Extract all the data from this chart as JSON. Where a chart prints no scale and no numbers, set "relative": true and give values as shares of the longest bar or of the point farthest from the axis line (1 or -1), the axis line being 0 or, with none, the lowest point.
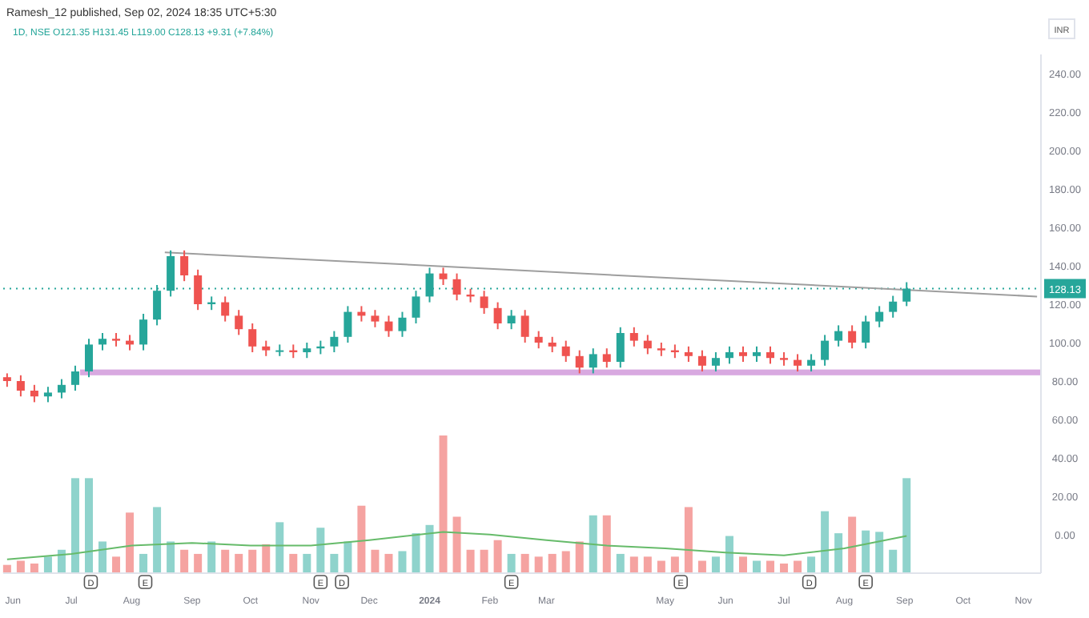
{
  "chart_data": [
    {
      "type": "candlestick",
      "title": "Ramesh_12 published, Sep 02, 2024 18:35 UTC+5:30",
      "subtitle": "1D, NSE  O121.35 H131.45 L119.00 C128.13 +9.31 (+7.84%)",
      "ylabel": "INR",
      "x": [
        "2023-05-29",
        "2023-06-05",
        "2023-06-12",
        "2023-06-19",
        "2023-06-26",
        "2023-07-03",
        "2023-07-10",
        "2023-07-17",
        "2023-07-24",
        "2023-07-31",
        "2023-08-07",
        "2023-08-14",
        "2023-08-21",
        "2023-08-28",
        "2023-09-04",
        "2023-09-11",
        "2023-09-18",
        "2023-09-25",
        "2023-10-02",
        "2023-10-09",
        "2023-10-16",
        "2023-10-23",
        "2023-10-30",
        "2023-11-06",
        "2023-11-13",
        "2023-11-20",
        "2023-11-27",
        "2023-12-04",
        "2023-12-11",
        "2023-12-18",
        "2023-12-25",
        "2024-01-01",
        "2024-01-08",
        "2024-01-15",
        "2024-01-22",
        "2024-01-29",
        "2024-02-05",
        "2024-02-12",
        "2024-02-19",
        "2024-02-26",
        "2024-03-04",
        "2024-03-11",
        "2024-03-18",
        "2024-03-25",
        "2024-04-01",
        "2024-04-08",
        "2024-04-15",
        "2024-04-22",
        "2024-04-29",
        "2024-05-06",
        "2024-05-13",
        "2024-05-20",
        "2024-05-27",
        "2024-06-03",
        "2024-06-10",
        "2024-06-17",
        "2024-06-24",
        "2024-07-01",
        "2024-07-08",
        "2024-07-15",
        "2024-07-22",
        "2024-07-29",
        "2024-08-05",
        "2024-08-12",
        "2024-08-19",
        "2024-08-26",
        "2024-09-02"
      ],
      "ohlc": [
        [
          82,
          84,
          77,
          80
        ],
        [
          80,
          83,
          72,
          75
        ],
        [
          75,
          78,
          69,
          72
        ],
        [
          72,
          77,
          69,
          74
        ],
        [
          74,
          81,
          71,
          78
        ],
        [
          78,
          88,
          75,
          85
        ],
        [
          85,
          102,
          82,
          99
        ],
        [
          99,
          105,
          96,
          102
        ],
        [
          102,
          105,
          98,
          101
        ],
        [
          101,
          104,
          96,
          99
        ],
        [
          99,
          115,
          96,
          112
        ],
        [
          112,
          130,
          109,
          127
        ],
        [
          127,
          148,
          124,
          145
        ],
        [
          145,
          148,
          132,
          135
        ],
        [
          135,
          138,
          117,
          120
        ],
        [
          120,
          124,
          117,
          121
        ],
        [
          121,
          124,
          111,
          114
        ],
        [
          114,
          117,
          104,
          107
        ],
        [
          107,
          110,
          95,
          98
        ],
        [
          98,
          101,
          93,
          96
        ],
        [
          96,
          99,
          93,
          96
        ],
        [
          96,
          99,
          92,
          95
        ],
        [
          95,
          100,
          92,
          97
        ],
        [
          97,
          101,
          94,
          98
        ],
        [
          98,
          106,
          95,
          103
        ],
        [
          103,
          119,
          100,
          116
        ],
        [
          116,
          119,
          111,
          114
        ],
        [
          114,
          117,
          108,
          111
        ],
        [
          111,
          114,
          103,
          106
        ],
        [
          106,
          116,
          103,
          113
        ],
        [
          113,
          127,
          110,
          124
        ],
        [
          124,
          139,
          121,
          136
        ],
        [
          136,
          139,
          130,
          133
        ],
        [
          133,
          136,
          122,
          125
        ],
        [
          125,
          128,
          121,
          124
        ],
        [
          124,
          127,
          115,
          118
        ],
        [
          118,
          121,
          107,
          110
        ],
        [
          110,
          117,
          107,
          114
        ],
        [
          114,
          117,
          100,
          103
        ],
        [
          103,
          106,
          97,
          100
        ],
        [
          100,
          103,
          95,
          98
        ],
        [
          98,
          101,
          90,
          93
        ],
        [
          93,
          96,
          84,
          87
        ],
        [
          87,
          97,
          84,
          94
        ],
        [
          94,
          97,
          87,
          90
        ],
        [
          90,
          108,
          87,
          105
        ],
        [
          105,
          108,
          98,
          101
        ],
        [
          101,
          104,
          94,
          97
        ],
        [
          97,
          100,
          93,
          96
        ],
        [
          96,
          99,
          92,
          95
        ],
        [
          95,
          98,
          90,
          93
        ],
        [
          93,
          96,
          85,
          88
        ],
        [
          88,
          95,
          85,
          92
        ],
        [
          92,
          98,
          89,
          95
        ],
        [
          95,
          98,
          90,
          93
        ],
        [
          93,
          98,
          90,
          95
        ],
        [
          95,
          98,
          89,
          92
        ],
        [
          92,
          95,
          88,
          91
        ],
        [
          91,
          94,
          85,
          88
        ],
        [
          88,
          94,
          85,
          91
        ],
        [
          91,
          104,
          88,
          101
        ],
        [
          101,
          109,
          98,
          106
        ],
        [
          106,
          109,
          97,
          100
        ],
        [
          100,
          114,
          97,
          111
        ],
        [
          111,
          119,
          108,
          116
        ],
        [
          116,
          124.35,
          113,
          121.35
        ],
        [
          121.35,
          131.45,
          119,
          128.13
        ]
      ],
      "colors": [
        "#ef5350",
        "#ef5350",
        "#ef5350",
        "#26a69a",
        "#26a69a",
        "#26a69a",
        "#26a69a",
        "#26a69a",
        "#ef5350",
        "#ef5350",
        "#26a69a",
        "#26a69a",
        "#26a69a",
        "#ef5350",
        "#ef5350",
        "#26a69a",
        "#ef5350",
        "#ef5350",
        "#ef5350",
        "#ef5350",
        "#26a69a",
        "#ef5350",
        "#26a69a",
        "#26a69a",
        "#26a69a",
        "#26a69a",
        "#ef5350",
        "#ef5350",
        "#ef5350",
        "#26a69a",
        "#26a69a",
        "#26a69a",
        "#ef5350",
        "#ef5350",
        "#ef5350",
        "#ef5350",
        "#ef5350",
        "#26a69a",
        "#ef5350",
        "#ef5350",
        "#ef5350",
        "#ef5350",
        "#ef5350",
        "#26a69a",
        "#ef5350",
        "#26a69a",
        "#ef5350",
        "#ef5350",
        "#ef5350",
        "#ef5350",
        "#ef5350",
        "#ef5350",
        "#26a69a",
        "#26a69a",
        "#ef5350",
        "#26a69a",
        "#ef5350",
        "#ef5350",
        "#ef5350",
        "#26a69a",
        "#26a69a",
        "#26a69a",
        "#ef5350",
        "#26a69a",
        "#26a69a",
        "#26a69a",
        "#26a69a"
      ],
      "series": [
        {
          "type": "line",
          "x": [
            "2023-08-18",
            "2024-11-08"
          ],
          "values": [
            147,
            124
          ],
          "color": "#9e9e9e"
        }
      ],
      "xlim": [
        "2023-05-27",
        "2024-11-10"
      ],
      "ylim": [
        -20,
        250
      ],
      "yticks": [
        {
          "value": 0,
          "label": "0.00"
        },
        {
          "value": 20,
          "label": "20.00"
        },
        {
          "value": 40,
          "label": "40.00"
        },
        {
          "value": 60,
          "label": "60.00"
        },
        {
          "value": 80,
          "label": "80.00"
        },
        {
          "value": 100,
          "label": "100.00"
        },
        {
          "value": 120,
          "label": "120.00"
        },
        {
          "value": 140,
          "label": "140.00"
        },
        {
          "value": 160,
          "label": "160.00"
        },
        {
          "value": 180,
          "label": "180.00"
        },
        {
          "value": 200,
          "label": "200.00"
        },
        {
          "value": 220,
          "label": "220.00"
        },
        {
          "value": 240,
          "label": "240.00"
        }
      ],
      "tick_labels": "y",
      "ref_lines": [
        {
          "axis": "y",
          "value": 128.13,
          "label": "128.13",
          "color": "#26a69a",
          "line_style": "dotted"
        }
      ],
      "bands": [
        {
          "axis": "y",
          "from": 83,
          "to": 86,
          "color": "#ce93d8"
        }
      ]
    },
    {
      "type": "bar",
      "relative": true,
      "x": [
        "2023-05-29",
        "2023-06-05",
        "2023-06-12",
        "2023-06-19",
        "2023-06-26",
        "2023-07-03",
        "2023-07-10",
        "2023-07-17",
        "2023-07-24",
        "2023-07-31",
        "2023-08-07",
        "2023-08-14",
        "2023-08-21",
        "2023-08-28",
        "2023-09-04",
        "2023-09-11",
        "2023-09-18",
        "2023-09-25",
        "2023-10-02",
        "2023-10-09",
        "2023-10-16",
        "2023-10-23",
        "2023-10-30",
        "2023-11-06",
        "2023-11-13",
        "2023-11-20",
        "2023-11-27",
        "2023-12-04",
        "2023-12-11",
        "2023-12-18",
        "2023-12-25",
        "2024-01-01",
        "2024-01-08",
        "2024-01-15",
        "2024-01-22",
        "2024-01-29",
        "2024-02-05",
        "2024-02-12",
        "2024-02-19",
        "2024-02-26",
        "2024-03-04",
        "2024-03-11",
        "2024-03-18",
        "2024-03-25",
        "2024-04-01",
        "2024-04-08",
        "2024-04-15",
        "2024-04-22",
        "2024-04-29",
        "2024-05-06",
        "2024-05-13",
        "2024-05-20",
        "2024-05-27",
        "2024-06-03",
        "2024-06-10",
        "2024-06-17",
        "2024-06-24",
        "2024-07-01",
        "2024-07-08",
        "2024-07-15",
        "2024-07-22",
        "2024-07-29",
        "2024-08-05",
        "2024-08-12",
        "2024-08-19",
        "2024-08-26",
        "2024-09-02"
      ],
      "series": [
        {
          "type": "bar",
          "values": [
            0.06,
            0.09,
            0.07,
            0.12,
            0.17,
            0.69,
            0.69,
            0.23,
            0.12,
            0.44,
            0.14,
            0.48,
            0.23,
            0.17,
            0.14,
            0.23,
            0.17,
            0.14,
            0.17,
            0.21,
            0.37,
            0.14,
            0.14,
            0.33,
            0.14,
            0.23,
            0.49,
            0.17,
            0.14,
            0.16,
            0.29,
            0.35,
            1,
            0.41,
            0.17,
            0.17,
            0.24,
            0.14,
            0.14,
            0.12,
            0.14,
            0.16,
            0.23,
            0.42,
            0.42,
            0.14,
            0.12,
            0.12,
            0.09,
            0.12,
            0.48,
            0.09,
            0.12,
            0.27,
            0.12,
            0.09,
            0.09,
            0.07,
            0.09,
            0.12,
            0.45,
            0.29,
            0.41,
            0.31,
            0.3,
            0.17,
            0.69
          ],
          "colors": [
            "#f5a3a1",
            "#f5a3a1",
            "#f5a3a1",
            "#8fd3cc",
            "#8fd3cc",
            "#8fd3cc",
            "#8fd3cc",
            "#8fd3cc",
            "#f5a3a1",
            "#f5a3a1",
            "#8fd3cc",
            "#8fd3cc",
            "#8fd3cc",
            "#f5a3a1",
            "#f5a3a1",
            "#8fd3cc",
            "#f5a3a1",
            "#f5a3a1",
            "#f5a3a1",
            "#f5a3a1",
            "#8fd3cc",
            "#f5a3a1",
            "#8fd3cc",
            "#8fd3cc",
            "#8fd3cc",
            "#8fd3cc",
            "#f5a3a1",
            "#f5a3a1",
            "#f5a3a1",
            "#8fd3cc",
            "#8fd3cc",
            "#8fd3cc",
            "#f5a3a1",
            "#f5a3a1",
            "#f5a3a1",
            "#f5a3a1",
            "#f5a3a1",
            "#8fd3cc",
            "#f5a3a1",
            "#f5a3a1",
            "#f5a3a1",
            "#f5a3a1",
            "#f5a3a1",
            "#8fd3cc",
            "#f5a3a1",
            "#8fd3cc",
            "#f5a3a1",
            "#f5a3a1",
            "#f5a3a1",
            "#f5a3a1",
            "#f5a3a1",
            "#f5a3a1",
            "#8fd3cc",
            "#8fd3cc",
            "#f5a3a1",
            "#8fd3cc",
            "#f5a3a1",
            "#f5a3a1",
            "#f5a3a1",
            "#8fd3cc",
            "#8fd3cc",
            "#8fd3cc",
            "#f5a3a1",
            "#8fd3cc",
            "#8fd3cc",
            "#8fd3cc",
            "#8fd3cc"
          ]
        },
        {
          "type": "line",
          "color": "#66bb6a",
          "x": [
            "2023-05-29",
            "2023-07-01",
            "2023-08-01",
            "2023-09-01",
            "2023-10-01",
            "2023-11-01",
            "2023-12-01",
            "2024-01-08",
            "2024-02-01",
            "2024-03-01",
            "2024-04-01",
            "2024-05-01",
            "2024-06-01",
            "2024-07-01",
            "2024-08-01",
            "2024-09-02"
          ],
          "values": [
            0.1,
            0.14,
            0.2,
            0.22,
            0.2,
            0.2,
            0.24,
            0.3,
            0.28,
            0.24,
            0.2,
            0.18,
            0.15,
            0.13,
            0.18,
            0.27
          ]
        }
      ],
      "xlim": [
        "2023-05-27",
        "2024-11-10"
      ],
      "xticks": [
        {
          "value": "2023-06-01",
          "label": "Jun"
        },
        {
          "value": "2023-07-01",
          "label": "Jul"
        },
        {
          "value": "2023-08-01",
          "label": "Aug"
        },
        {
          "value": "2023-09-01",
          "label": "Sep"
        },
        {
          "value": "2023-10-01",
          "label": "Oct"
        },
        {
          "value": "2023-11-01",
          "label": "Nov"
        },
        {
          "value": "2023-12-01",
          "label": "Dec"
        },
        {
          "value": "2024-01-01",
          "label": "2024"
        },
        {
          "value": "2024-02-01",
          "label": "Feb"
        },
        {
          "value": "2024-03-01",
          "label": "Mar"
        },
        {
          "value": "2024-05-01",
          "label": "May"
        },
        {
          "value": "2024-06-01",
          "label": "Jun"
        },
        {
          "value": "2024-07-01",
          "label": "Jul"
        },
        {
          "value": "2024-08-01",
          "label": "Aug"
        },
        {
          "value": "2024-09-01",
          "label": "Sep"
        },
        {
          "value": "2024-10-01",
          "label": "Oct"
        },
        {
          "value": "2024-11-01",
          "label": "Nov"
        }
      ],
      "tick_labels": "x",
      "annotations": [
        {
          "text": "D",
          "x": "2023-07-11"
        },
        {
          "text": "E",
          "x": "2023-08-08"
        },
        {
          "text": "E",
          "x": "2023-11-06"
        },
        {
          "text": "D",
          "x": "2023-11-17"
        },
        {
          "text": "E",
          "x": "2024-02-12"
        },
        {
          "text": "E",
          "x": "2024-05-09"
        },
        {
          "text": "D",
          "x": "2024-07-14"
        },
        {
          "text": "E",
          "x": "2024-08-12"
        }
      ]
    }
  ]
}
